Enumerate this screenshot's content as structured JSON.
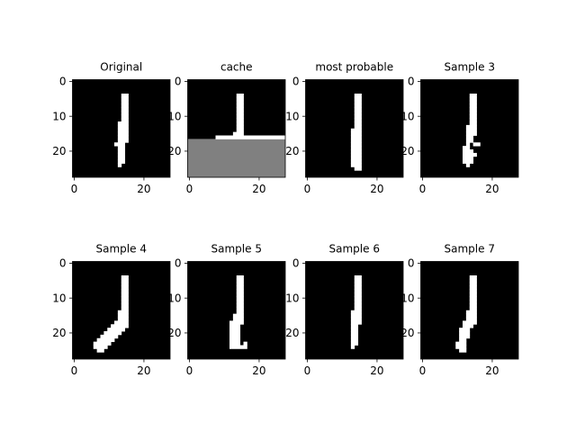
{
  "figure": {
    "background": "#ffffff",
    "image_on_color": "#ffffff",
    "image_off_color": "#000000",
    "cache_fill_color": "#808080"
  },
  "chart_data": [
    {
      "type": "heatmap",
      "title": "Original",
      "image_size": [
        28,
        28
      ],
      "x_ticks": [
        "0",
        "20"
      ],
      "y_ticks": [
        "0",
        "10",
        "20"
      ],
      "white_cells": [
        [
          4,
          14,
          16
        ],
        [
          5,
          14,
          16
        ],
        [
          6,
          14,
          16
        ],
        [
          7,
          14,
          16
        ],
        [
          8,
          14,
          16
        ],
        [
          9,
          14,
          16
        ],
        [
          10,
          14,
          16
        ],
        [
          11,
          14,
          16
        ],
        [
          12,
          13,
          16
        ],
        [
          13,
          13,
          16
        ],
        [
          14,
          13,
          16
        ],
        [
          15,
          13,
          16
        ],
        [
          16,
          13,
          16
        ],
        [
          17,
          13,
          16
        ],
        [
          18,
          12,
          15
        ],
        [
          19,
          13,
          15
        ],
        [
          20,
          13,
          15
        ],
        [
          21,
          13,
          15
        ],
        [
          22,
          13,
          15
        ],
        [
          23,
          13,
          15
        ],
        [
          24,
          13,
          14
        ]
      ],
      "gray_rows": []
    },
    {
      "type": "heatmap",
      "title": "cache",
      "image_size": [
        28,
        28
      ],
      "x_ticks": [
        "0",
        "20"
      ],
      "y_ticks": [
        "0",
        "10",
        "20"
      ],
      "white_cells": [
        [
          4,
          14,
          16
        ],
        [
          5,
          14,
          16
        ],
        [
          6,
          14,
          16
        ],
        [
          7,
          14,
          16
        ],
        [
          8,
          14,
          16
        ],
        [
          9,
          14,
          16
        ],
        [
          10,
          14,
          16
        ],
        [
          11,
          14,
          16
        ],
        [
          12,
          14,
          16
        ],
        [
          13,
          14,
          16
        ],
        [
          14,
          14,
          16
        ],
        [
          15,
          13,
          16
        ],
        [
          16,
          8,
          28
        ]
      ],
      "gray_rows": [
        [
          17,
          28
        ]
      ]
    },
    {
      "type": "heatmap",
      "title": "most probable",
      "image_size": [
        28,
        28
      ],
      "x_ticks": [
        "0",
        "20"
      ],
      "y_ticks": [
        "0",
        "10",
        "20"
      ],
      "white_cells": [
        [
          4,
          14,
          16
        ],
        [
          5,
          14,
          16
        ],
        [
          6,
          14,
          16
        ],
        [
          7,
          14,
          16
        ],
        [
          8,
          14,
          16
        ],
        [
          9,
          14,
          16
        ],
        [
          10,
          14,
          16
        ],
        [
          11,
          14,
          16
        ],
        [
          12,
          14,
          16
        ],
        [
          13,
          14,
          16
        ],
        [
          14,
          13,
          16
        ],
        [
          15,
          13,
          16
        ],
        [
          16,
          13,
          16
        ],
        [
          17,
          13,
          16
        ],
        [
          18,
          13,
          16
        ],
        [
          19,
          13,
          16
        ],
        [
          20,
          13,
          16
        ],
        [
          21,
          13,
          16
        ],
        [
          22,
          13,
          16
        ],
        [
          23,
          13,
          16
        ],
        [
          24,
          13,
          16
        ],
        [
          25,
          14,
          16
        ]
      ],
      "gray_rows": []
    },
    {
      "type": "heatmap",
      "title": "Sample 3",
      "image_size": [
        28,
        28
      ],
      "x_ticks": [
        "0",
        "20"
      ],
      "y_ticks": [
        "0",
        "10",
        "20"
      ],
      "white_cells": [
        [
          4,
          14,
          16
        ],
        [
          5,
          14,
          16
        ],
        [
          6,
          14,
          16
        ],
        [
          7,
          14,
          16
        ],
        [
          8,
          14,
          16
        ],
        [
          9,
          14,
          16
        ],
        [
          10,
          14,
          16
        ],
        [
          11,
          14,
          16
        ],
        [
          12,
          14,
          16
        ],
        [
          13,
          13,
          16
        ],
        [
          14,
          13,
          16
        ],
        [
          15,
          13,
          16
        ],
        [
          16,
          13,
          15
        ],
        [
          17,
          13,
          15
        ],
        [
          18,
          13,
          14
        ],
        [
          18,
          15,
          17
        ],
        [
          19,
          12,
          14
        ],
        [
          20,
          12,
          15
        ],
        [
          21,
          12,
          16
        ],
        [
          22,
          12,
          15
        ],
        [
          23,
          12,
          15
        ],
        [
          24,
          13,
          14
        ]
      ],
      "gray_rows": []
    },
    {
      "type": "heatmap",
      "title": "Sample 4",
      "image_size": [
        28,
        28
      ],
      "x_ticks": [
        "0",
        "20"
      ],
      "y_ticks": [
        "0",
        "10",
        "20"
      ],
      "white_cells": [
        [
          4,
          14,
          16
        ],
        [
          5,
          14,
          16
        ],
        [
          6,
          14,
          16
        ],
        [
          7,
          14,
          16
        ],
        [
          8,
          14,
          16
        ],
        [
          9,
          14,
          16
        ],
        [
          10,
          14,
          16
        ],
        [
          11,
          14,
          16
        ],
        [
          12,
          14,
          16
        ],
        [
          13,
          14,
          16
        ],
        [
          14,
          13,
          16
        ],
        [
          15,
          13,
          16
        ],
        [
          16,
          13,
          16
        ],
        [
          17,
          12,
          16
        ],
        [
          18,
          11,
          16
        ],
        [
          19,
          10,
          15
        ],
        [
          20,
          9,
          14
        ],
        [
          21,
          8,
          13
        ],
        [
          22,
          7,
          12
        ],
        [
          23,
          6,
          11
        ],
        [
          24,
          6,
          10
        ],
        [
          25,
          7,
          9
        ]
      ],
      "gray_rows": []
    },
    {
      "type": "heatmap",
      "title": "Sample 5",
      "image_size": [
        28,
        28
      ],
      "x_ticks": [
        "0",
        "20"
      ],
      "y_ticks": [
        "0",
        "10",
        "20"
      ],
      "white_cells": [
        [
          4,
          14,
          16
        ],
        [
          5,
          14,
          16
        ],
        [
          6,
          14,
          16
        ],
        [
          7,
          14,
          16
        ],
        [
          8,
          14,
          16
        ],
        [
          9,
          14,
          16
        ],
        [
          10,
          14,
          16
        ],
        [
          11,
          14,
          16
        ],
        [
          12,
          14,
          16
        ],
        [
          13,
          14,
          16
        ],
        [
          14,
          14,
          16
        ],
        [
          15,
          13,
          16
        ],
        [
          16,
          13,
          16
        ],
        [
          17,
          12,
          16
        ],
        [
          18,
          12,
          15
        ],
        [
          19,
          12,
          15
        ],
        [
          20,
          12,
          15
        ],
        [
          21,
          12,
          15
        ],
        [
          22,
          12,
          15
        ],
        [
          23,
          12,
          15
        ],
        [
          23,
          16,
          17
        ],
        [
          24,
          12,
          17
        ]
      ],
      "gray_rows": []
    },
    {
      "type": "heatmap",
      "title": "Sample 6",
      "image_size": [
        28,
        28
      ],
      "x_ticks": [
        "0",
        "20"
      ],
      "y_ticks": [
        "0",
        "10",
        "20"
      ],
      "white_cells": [
        [
          4,
          14,
          16
        ],
        [
          5,
          14,
          16
        ],
        [
          6,
          14,
          16
        ],
        [
          7,
          14,
          16
        ],
        [
          8,
          14,
          16
        ],
        [
          9,
          14,
          16
        ],
        [
          10,
          14,
          16
        ],
        [
          11,
          14,
          16
        ],
        [
          12,
          14,
          16
        ],
        [
          13,
          14,
          16
        ],
        [
          14,
          13,
          16
        ],
        [
          15,
          13,
          16
        ],
        [
          16,
          13,
          16
        ],
        [
          17,
          13,
          16
        ],
        [
          18,
          13,
          15
        ],
        [
          19,
          13,
          15
        ],
        [
          20,
          13,
          15
        ],
        [
          21,
          13,
          15
        ],
        [
          22,
          13,
          15
        ],
        [
          23,
          13,
          15
        ],
        [
          24,
          13,
          14
        ]
      ],
      "gray_rows": []
    },
    {
      "type": "heatmap",
      "title": "Sample 7",
      "image_size": [
        28,
        28
      ],
      "x_ticks": [
        "0",
        "20"
      ],
      "y_ticks": [
        "0",
        "10",
        "20"
      ],
      "white_cells": [
        [
          4,
          14,
          16
        ],
        [
          5,
          14,
          16
        ],
        [
          6,
          14,
          16
        ],
        [
          7,
          14,
          16
        ],
        [
          8,
          14,
          16
        ],
        [
          9,
          14,
          16
        ],
        [
          10,
          14,
          16
        ],
        [
          11,
          14,
          16
        ],
        [
          12,
          14,
          16
        ],
        [
          13,
          14,
          16
        ],
        [
          14,
          13,
          16
        ],
        [
          15,
          13,
          16
        ],
        [
          16,
          13,
          16
        ],
        [
          17,
          12,
          16
        ],
        [
          18,
          12,
          15
        ],
        [
          19,
          11,
          14
        ],
        [
          20,
          11,
          14
        ],
        [
          21,
          11,
          14
        ],
        [
          22,
          11,
          13
        ],
        [
          23,
          10,
          13
        ],
        [
          24,
          10,
          13
        ],
        [
          25,
          11,
          13
        ]
      ],
      "gray_rows": []
    }
  ]
}
